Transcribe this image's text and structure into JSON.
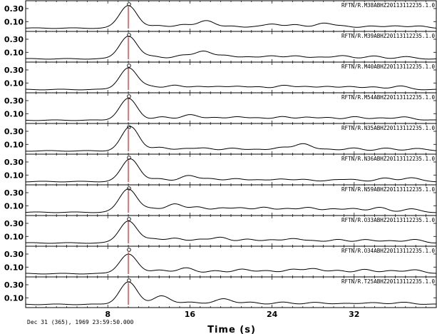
{
  "chart_data": {
    "type": "line",
    "xlabel": "Time (s)",
    "footer": "Dec 31 (365), 1969 23:59:50.000",
    "xlim": [
      0,
      40
    ],
    "x_ticks": [
      "8",
      "16",
      "24",
      "32"
    ],
    "x_tick_values": [
      8,
      16,
      24,
      32
    ],
    "y_ticks": [
      "0.30",
      "0.10"
    ],
    "y_tick_values": [
      0.3,
      0.1
    ],
    "ylim": [
      -0.05,
      0.42
    ],
    "pick_marker": {
      "label": "O",
      "time": 10.0,
      "color": "#e03030"
    },
    "trace_color": "#000000",
    "traces": [
      {
        "name": "RFTN/R.M38ABHZ20113112235.1.0",
        "peaks": [
          [
            10.0,
            0.35,
            0.85
          ],
          [
            13.0,
            0.04,
            0.8
          ],
          [
            15.3,
            0.05,
            0.8
          ],
          [
            17.6,
            0.12,
            0.8
          ],
          [
            20.2,
            0.03,
            0.8
          ],
          [
            22.3,
            0.02,
            0.8
          ],
          [
            24.1,
            0.06,
            0.8
          ],
          [
            26.2,
            0.05,
            0.8
          ],
          [
            29.0,
            0.08,
            0.8
          ],
          [
            31.0,
            0.03,
            0.8
          ],
          [
            33.5,
            0.03,
            0.8
          ],
          [
            36.0,
            0.04,
            0.8
          ],
          [
            38.5,
            0.03,
            0.8
          ]
        ]
      },
      {
        "name": "RFTN/R.M39ABHZ20113112235.1.0",
        "peaks": [
          [
            10.0,
            0.35,
            0.85
          ],
          [
            12.5,
            0.04,
            0.8
          ],
          [
            15.3,
            0.05,
            0.8
          ],
          [
            17.3,
            0.12,
            0.8
          ],
          [
            19.5,
            0.05,
            0.8
          ],
          [
            21.5,
            0.03,
            0.8
          ],
          [
            24.0,
            0.05,
            0.8
          ],
          [
            26.3,
            0.04,
            0.8
          ],
          [
            28.5,
            0.03,
            0.8
          ],
          [
            31.0,
            0.05,
            0.8
          ],
          [
            34.0,
            0.04,
            0.8
          ],
          [
            37.0,
            0.03,
            0.8
          ]
        ]
      },
      {
        "name": "RFTN/R.M40ABHZ20113112235.1.0",
        "peaks": [
          [
            10.0,
            0.33,
            0.85
          ],
          [
            12.2,
            0.05,
            0.8
          ],
          [
            14.5,
            0.06,
            0.8
          ],
          [
            16.7,
            0.05,
            0.8
          ],
          [
            18.8,
            0.04,
            0.8
          ],
          [
            20.6,
            0.05,
            0.8
          ],
          [
            22.8,
            0.04,
            0.8
          ],
          [
            25.1,
            0.06,
            0.8
          ],
          [
            27.3,
            0.05,
            0.8
          ],
          [
            29.4,
            0.04,
            0.8
          ],
          [
            31.5,
            0.05,
            0.8
          ],
          [
            34.0,
            0.04,
            0.8
          ],
          [
            36.5,
            0.05,
            0.8
          ]
        ]
      },
      {
        "name": "RFTN/R.M54ABHZ20113112235.1.0",
        "peaks": [
          [
            10.0,
            0.33,
            0.85
          ],
          [
            13.2,
            0.05,
            0.8
          ],
          [
            16.0,
            0.09,
            0.8
          ],
          [
            18.5,
            0.04,
            0.8
          ],
          [
            20.5,
            0.05,
            0.8
          ],
          [
            22.7,
            0.04,
            0.8
          ],
          [
            25.0,
            0.05,
            0.8
          ],
          [
            27.3,
            0.05,
            0.8
          ],
          [
            29.6,
            0.04,
            0.8
          ],
          [
            32.0,
            0.05,
            0.8
          ],
          [
            34.5,
            0.04,
            0.8
          ],
          [
            37.0,
            0.05,
            0.8
          ]
        ]
      },
      {
        "name": "RFTN/R.N35ABHZ20113112235.1.0",
        "peaks": [
          [
            10.2,
            0.37,
            0.85
          ],
          [
            13.0,
            0.05,
            0.8
          ],
          [
            15.5,
            0.04,
            0.8
          ],
          [
            17.5,
            0.04,
            0.8
          ],
          [
            20.0,
            0.04,
            0.8
          ],
          [
            22.5,
            0.03,
            0.8
          ],
          [
            25.0,
            0.05,
            0.8
          ],
          [
            27.0,
            0.11,
            0.8
          ],
          [
            29.5,
            0.03,
            0.8
          ],
          [
            32.0,
            0.04,
            0.8
          ],
          [
            35.0,
            0.04,
            0.8
          ],
          [
            38.0,
            0.04,
            0.8
          ]
        ]
      },
      {
        "name": "RFTN/R.N36ABHZ20113112235.1.0",
        "peaks": [
          [
            10.2,
            0.35,
            0.85
          ],
          [
            13.0,
            0.04,
            0.8
          ],
          [
            15.8,
            0.09,
            0.8
          ],
          [
            18.0,
            0.05,
            0.8
          ],
          [
            20.5,
            0.04,
            0.8
          ],
          [
            22.5,
            0.03,
            0.8
          ],
          [
            25.0,
            0.04,
            0.8
          ],
          [
            27.0,
            0.03,
            0.8
          ],
          [
            30.0,
            0.03,
            0.8
          ],
          [
            32.0,
            0.03,
            0.8
          ],
          [
            35.0,
            0.05,
            0.8
          ],
          [
            37.5,
            0.06,
            0.8
          ]
        ]
      },
      {
        "name": "RFTN/R.N59ABHZ20113112235.1.0",
        "peaks": [
          [
            10.0,
            0.36,
            0.85
          ],
          [
            12.3,
            0.05,
            0.8
          ],
          [
            14.5,
            0.13,
            0.8
          ],
          [
            16.8,
            0.08,
            0.8
          ],
          [
            19.0,
            0.06,
            0.8
          ],
          [
            21.0,
            0.07,
            0.8
          ],
          [
            23.2,
            0.07,
            0.8
          ],
          [
            25.4,
            0.06,
            0.8
          ],
          [
            27.6,
            0.07,
            0.8
          ],
          [
            29.8,
            0.05,
            0.8
          ],
          [
            32.0,
            0.06,
            0.8
          ],
          [
            34.5,
            0.07,
            0.8
          ],
          [
            37.5,
            0.05,
            0.8
          ]
        ]
      },
      {
        "name": "RFTN/R.O33ABHZ20113112235.1.0",
        "peaks": [
          [
            10.0,
            0.34,
            0.85
          ],
          [
            12.5,
            0.06,
            0.8
          ],
          [
            14.5,
            0.07,
            0.8
          ],
          [
            17.0,
            0.06,
            0.8
          ],
          [
            19.0,
            0.08,
            0.8
          ],
          [
            21.5,
            0.06,
            0.8
          ],
          [
            24.0,
            0.05,
            0.8
          ],
          [
            26.0,
            0.06,
            0.8
          ],
          [
            28.0,
            0.04,
            0.8
          ],
          [
            30.5,
            0.05,
            0.8
          ],
          [
            33.0,
            0.05,
            0.8
          ],
          [
            35.5,
            0.04,
            0.8
          ],
          [
            38.0,
            0.05,
            0.8
          ]
        ]
      },
      {
        "name": "RFTN/R.O34ABHZ20113112235.1.0",
        "peaks": [
          [
            10.0,
            0.3,
            0.85
          ],
          [
            13.0,
            0.06,
            0.8
          ],
          [
            15.7,
            0.09,
            0.8
          ],
          [
            18.5,
            0.04,
            0.8
          ],
          [
            21.0,
            0.07,
            0.8
          ],
          [
            23.5,
            0.05,
            0.8
          ],
          [
            26.0,
            0.06,
            0.8
          ],
          [
            28.0,
            0.08,
            0.8
          ],
          [
            30.5,
            0.05,
            0.8
          ],
          [
            33.0,
            0.06,
            0.8
          ],
          [
            35.5,
            0.05,
            0.8
          ],
          [
            38.0,
            0.06,
            0.8
          ]
        ]
      },
      {
        "name": "RFTN/R.T25ABHZ20113112235.1.0",
        "peaks": [
          [
            10.0,
            0.34,
            0.85
          ],
          [
            13.2,
            0.13,
            0.8
          ],
          [
            16.0,
            0.04,
            0.8
          ],
          [
            19.3,
            0.09,
            0.8
          ],
          [
            22.0,
            0.03,
            0.8
          ],
          [
            25.0,
            0.03,
            0.8
          ],
          [
            28.0,
            0.03,
            0.8
          ],
          [
            31.0,
            0.02,
            0.8
          ],
          [
            34.0,
            0.03,
            0.8
          ],
          [
            37.0,
            0.03,
            0.8
          ]
        ]
      }
    ]
  }
}
